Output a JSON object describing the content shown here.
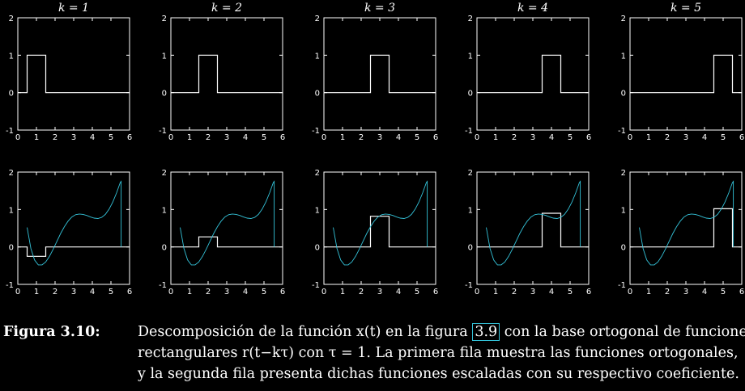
{
  "caption": {
    "label": "Figura 3.10:",
    "line1_before": "Descomposición de la función x(t) en la figura",
    "ref": "3.9",
    "line1_after": "con la base ortogonal de funciones",
    "line2": "rectangulares r(t−kτ) con τ = 1. La primera fila muestra las funciones ortogonales,",
    "line3": "y la segunda fila presenta dichas funciones escaladas con su respectivo coeficiente."
  },
  "colors": {
    "background": "#000000",
    "axis": "#ffffff",
    "signal": "#34c2d8",
    "ref_box": "#34c2d8"
  },
  "chart_data": [
    {
      "type": "line",
      "title": "k = 1",
      "xlim": [
        0,
        6
      ],
      "ylim": [
        -1,
        2
      ],
      "xticks": [
        "0",
        "1",
        "2",
        "3",
        "4",
        "5",
        "6"
      ],
      "yticks": [
        "-1",
        "0",
        "1",
        "2"
      ],
      "series": [
        {
          "x": [
            0.5,
            0.5,
            1.5,
            1.5
          ],
          "values": [
            0,
            1,
            1,
            0
          ]
        }
      ]
    },
    {
      "type": "line",
      "title": "k = 2",
      "xlim": [
        0,
        6
      ],
      "ylim": [
        -1,
        2
      ],
      "xticks": [
        "0",
        "1",
        "2",
        "3",
        "4",
        "5",
        "6"
      ],
      "yticks": [
        "-1",
        "0",
        "1",
        "2"
      ],
      "series": [
        {
          "x": [
            1.5,
            1.5,
            2.5,
            2.5
          ],
          "values": [
            0,
            1,
            1,
            0
          ]
        }
      ]
    },
    {
      "type": "line",
      "title": "k = 3",
      "xlim": [
        0,
        6
      ],
      "ylim": [
        -1,
        2
      ],
      "xticks": [
        "0",
        "1",
        "2",
        "3",
        "4",
        "5",
        "6"
      ],
      "yticks": [
        "-1",
        "0",
        "1",
        "2"
      ],
      "series": [
        {
          "x": [
            2.5,
            2.5,
            3.5,
            3.5
          ],
          "values": [
            0,
            1,
            1,
            0
          ]
        }
      ]
    },
    {
      "type": "line",
      "title": "k = 4",
      "xlim": [
        0,
        6
      ],
      "ylim": [
        -1,
        2
      ],
      "xticks": [
        "0",
        "1",
        "2",
        "3",
        "4",
        "5",
        "6"
      ],
      "yticks": [
        "-1",
        "0",
        "1",
        "2"
      ],
      "series": [
        {
          "x": [
            3.5,
            3.5,
            4.5,
            4.5
          ],
          "values": [
            0,
            1,
            1,
            0
          ]
        }
      ]
    },
    {
      "type": "line",
      "title": "k = 5",
      "xlim": [
        0,
        6
      ],
      "ylim": [
        -1,
        2
      ],
      "xticks": [
        "0",
        "1",
        "2",
        "3",
        "4",
        "5",
        "6"
      ],
      "yticks": [
        "-1",
        "0",
        "1",
        "2"
      ],
      "series": [
        {
          "x": [
            4.5,
            4.5,
            5.5,
            5.5
          ],
          "values": [
            0,
            1,
            1,
            0
          ]
        }
      ]
    },
    {
      "type": "line",
      "title": "",
      "xlim": [
        0,
        6
      ],
      "ylim": [
        -1,
        2
      ],
      "xticks": [
        "0",
        "1",
        "2",
        "3",
        "4",
        "5",
        "6"
      ],
      "yticks": [
        "-1",
        "0",
        "1",
        "2"
      ],
      "series": [
        {
          "x": [
            0.5,
            0.5,
            1.5,
            1.5
          ],
          "values": [
            0,
            -0.25,
            -0.25,
            0
          ]
        },
        {
          "x": [
            0.5,
            0.7,
            0.9,
            1.1,
            1.3,
            1.5,
            1.7,
            1.9,
            2.1,
            2.3,
            2.5,
            2.7,
            2.9,
            3.1,
            3.3,
            3.5,
            3.7,
            3.9,
            4.1,
            4.3,
            4.5,
            4.7,
            4.9,
            5.1,
            5.3,
            5.5,
            5.55,
            5.55
          ],
          "values": [
            0.52,
            -0.04,
            -0.35,
            -0.48,
            -0.48,
            -0.4,
            -0.25,
            -0.06,
            0.15,
            0.36,
            0.54,
            0.69,
            0.8,
            0.86,
            0.88,
            0.87,
            0.84,
            0.8,
            0.77,
            0.76,
            0.79,
            0.87,
            1.01,
            1.2,
            1.44,
            1.72,
            1.75,
            0
          ]
        }
      ]
    },
    {
      "type": "line",
      "title": "",
      "xlim": [
        0,
        6
      ],
      "ylim": [
        -1,
        2
      ],
      "xticks": [
        "0",
        "1",
        "2",
        "3",
        "4",
        "5",
        "6"
      ],
      "yticks": [
        "-1",
        "0",
        "1",
        "2"
      ],
      "series": [
        {
          "x": [
            1.5,
            1.5,
            2.5,
            2.5
          ],
          "values": [
            0,
            0.27,
            0.27,
            0
          ]
        },
        {
          "x": [
            0.5,
            0.7,
            0.9,
            1.1,
            1.3,
            1.5,
            1.7,
            1.9,
            2.1,
            2.3,
            2.5,
            2.7,
            2.9,
            3.1,
            3.3,
            3.5,
            3.7,
            3.9,
            4.1,
            4.3,
            4.5,
            4.7,
            4.9,
            5.1,
            5.3,
            5.5,
            5.55,
            5.55
          ],
          "values": [
            0.52,
            -0.04,
            -0.35,
            -0.48,
            -0.48,
            -0.4,
            -0.25,
            -0.06,
            0.15,
            0.36,
            0.54,
            0.69,
            0.8,
            0.86,
            0.88,
            0.87,
            0.84,
            0.8,
            0.77,
            0.76,
            0.79,
            0.87,
            1.01,
            1.2,
            1.44,
            1.72,
            1.75,
            0
          ]
        }
      ]
    },
    {
      "type": "line",
      "title": "",
      "xlim": [
        0,
        6
      ],
      "ylim": [
        -1,
        2
      ],
      "xticks": [
        "0",
        "1",
        "2",
        "3",
        "4",
        "5",
        "6"
      ],
      "yticks": [
        "-1",
        "0",
        "1",
        "2"
      ],
      "series": [
        {
          "x": [
            2.5,
            2.5,
            3.5,
            3.5
          ],
          "values": [
            0,
            0.82,
            0.82,
            0
          ]
        },
        {
          "x": [
            0.5,
            0.7,
            0.9,
            1.1,
            1.3,
            1.5,
            1.7,
            1.9,
            2.1,
            2.3,
            2.5,
            2.7,
            2.9,
            3.1,
            3.3,
            3.5,
            3.7,
            3.9,
            4.1,
            4.3,
            4.5,
            4.7,
            4.9,
            5.1,
            5.3,
            5.5,
            5.55,
            5.55
          ],
          "values": [
            0.52,
            -0.04,
            -0.35,
            -0.48,
            -0.48,
            -0.4,
            -0.25,
            -0.06,
            0.15,
            0.36,
            0.54,
            0.69,
            0.8,
            0.86,
            0.88,
            0.87,
            0.84,
            0.8,
            0.77,
            0.76,
            0.79,
            0.87,
            1.01,
            1.2,
            1.44,
            1.72,
            1.75,
            0
          ]
        }
      ]
    },
    {
      "type": "line",
      "title": "",
      "xlim": [
        0,
        6
      ],
      "ylim": [
        -1,
        2
      ],
      "xticks": [
        "0",
        "1",
        "2",
        "3",
        "4",
        "5",
        "6"
      ],
      "yticks": [
        "-1",
        "0",
        "1",
        "2"
      ],
      "series": [
        {
          "x": [
            3.5,
            3.5,
            4.5,
            4.5
          ],
          "values": [
            0,
            0.9,
            0.9,
            0
          ]
        },
        {
          "x": [
            0.5,
            0.7,
            0.9,
            1.1,
            1.3,
            1.5,
            1.7,
            1.9,
            2.1,
            2.3,
            2.5,
            2.7,
            2.9,
            3.1,
            3.3,
            3.5,
            3.7,
            3.9,
            4.1,
            4.3,
            4.5,
            4.7,
            4.9,
            5.1,
            5.3,
            5.5,
            5.55,
            5.55
          ],
          "values": [
            0.52,
            -0.04,
            -0.35,
            -0.48,
            -0.48,
            -0.4,
            -0.25,
            -0.06,
            0.15,
            0.36,
            0.54,
            0.69,
            0.8,
            0.86,
            0.88,
            0.87,
            0.84,
            0.8,
            0.77,
            0.76,
            0.79,
            0.87,
            1.01,
            1.2,
            1.44,
            1.72,
            1.75,
            0
          ]
        }
      ]
    },
    {
      "type": "line",
      "title": "",
      "xlim": [
        0,
        6
      ],
      "ylim": [
        -1,
        2
      ],
      "xticks": [
        "0",
        "1",
        "2",
        "3",
        "4",
        "5",
        "6"
      ],
      "yticks": [
        "-1",
        "0",
        "1",
        "2"
      ],
      "series": [
        {
          "x": [
            4.5,
            4.5,
            5.5,
            5.5
          ],
          "values": [
            0,
            1.02,
            1.02,
            0
          ]
        },
        {
          "x": [
            0.5,
            0.7,
            0.9,
            1.1,
            1.3,
            1.5,
            1.7,
            1.9,
            2.1,
            2.3,
            2.5,
            2.7,
            2.9,
            3.1,
            3.3,
            3.5,
            3.7,
            3.9,
            4.1,
            4.3,
            4.5,
            4.7,
            4.9,
            5.1,
            5.3,
            5.5,
            5.55,
            5.55
          ],
          "values": [
            0.52,
            -0.04,
            -0.35,
            -0.48,
            -0.48,
            -0.4,
            -0.25,
            -0.06,
            0.15,
            0.36,
            0.54,
            0.69,
            0.8,
            0.86,
            0.88,
            0.87,
            0.84,
            0.8,
            0.77,
            0.76,
            0.79,
            0.87,
            1.01,
            1.2,
            1.44,
            1.72,
            1.75,
            0
          ]
        }
      ]
    }
  ]
}
